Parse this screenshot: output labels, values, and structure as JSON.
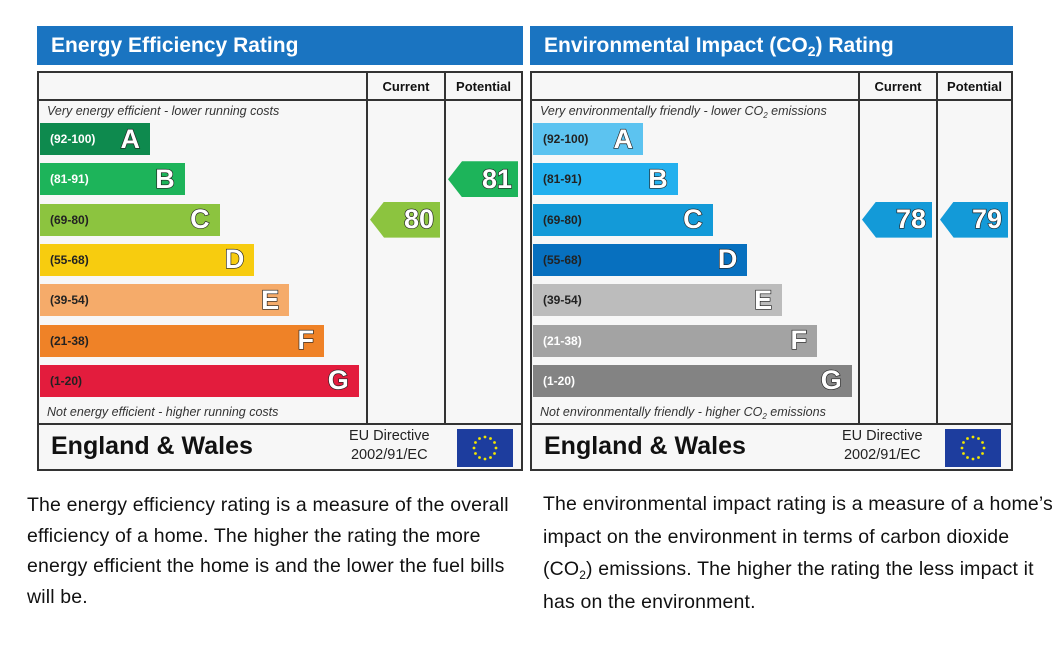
{
  "chart_data": [
    {
      "type": "bar",
      "title": "Energy Efficiency Rating",
      "columns": [
        "Current",
        "Potential"
      ],
      "note_top": "Very energy efficient - lower running costs",
      "note_bottom": "Not energy efficient - higher running costs",
      "categories": [
        "A",
        "B",
        "C",
        "D",
        "E",
        "F",
        "G"
      ],
      "ranges": [
        "(92-100)",
        "(81-91)",
        "(69-80)",
        "(55-68)",
        "(39-54)",
        "(21-38)",
        "(1-20)"
      ],
      "colors": [
        "#0e8a4e",
        "#1db45a",
        "#8cc43f",
        "#f7cc0f",
        "#f5ab6a",
        "#ef8227",
        "#e31c3d"
      ],
      "range_text_colors": [
        "#ffffff",
        "#ffffff",
        "#222222",
        "#222222",
        "#222222",
        "#222222",
        "#222222"
      ],
      "current": {
        "value": 80,
        "band": "C",
        "color": "#8cc43f"
      },
      "potential": {
        "value": 81,
        "band": "B",
        "color": "#1db45a"
      },
      "footer_region": "England & Wales",
      "footer_directive_line1": "EU Directive",
      "footer_directive_line2": "2002/91/EC"
    },
    {
      "type": "bar",
      "title": "Environmental Impact (CO2) Rating",
      "columns": [
        "Current",
        "Potential"
      ],
      "note_top": "Very environmentally friendly - lower CO2 emissions",
      "note_bottom": "Not environmentally friendly - higher CO2 emissions",
      "categories": [
        "A",
        "B",
        "C",
        "D",
        "E",
        "F",
        "G"
      ],
      "ranges": [
        "(92-100)",
        "(81-91)",
        "(69-80)",
        "(55-68)",
        "(39-54)",
        "(21-38)",
        "(1-20)"
      ],
      "colors": [
        "#5cc3f0",
        "#23b0ee",
        "#139ad8",
        "#0770bf",
        "#bcbcbc",
        "#a3a3a3",
        "#838383"
      ],
      "range_text_colors": [
        "#222222",
        "#222222",
        "#222222",
        "#222222",
        "#222222",
        "#ffffff",
        "#ffffff"
      ],
      "current": {
        "value": 78,
        "band": "C",
        "color": "#139ad8"
      },
      "potential": {
        "value": 79,
        "band": "C",
        "color": "#139ad8"
      },
      "footer_region": "England & Wales",
      "footer_directive_line1": "EU Directive",
      "footer_directive_line2": "2002/91/EC"
    }
  ],
  "titles": {
    "energy_main": "Energy Efficiency Rating",
    "env_main_prefix": "Environmental Impact (CO",
    "env_main_sub": "2",
    "env_main_suffix": ") Rating"
  },
  "notes": {
    "env_top_prefix": "Very environmentally friendly - lower CO",
    "env_top_sub": "2",
    "env_top_suffix": " emissions",
    "env_bottom_prefix": "Not environmentally friendly - higher CO",
    "env_bottom_sub": "2",
    "env_bottom_suffix": " emissions"
  },
  "descriptions": {
    "energy": "The energy efficiency rating is a measure of the overall efficiency of a home. The higher the rating the more energy efficient the home is and the lower the fuel bills will be.",
    "env_prefix": "The environmental impact rating is a measure of a home’s impact on the environment in terms of carbon dioxide (CO",
    "env_sub": "2",
    "env_suffix": ") emissions. The higher the rating the less impact it has on the environment."
  }
}
